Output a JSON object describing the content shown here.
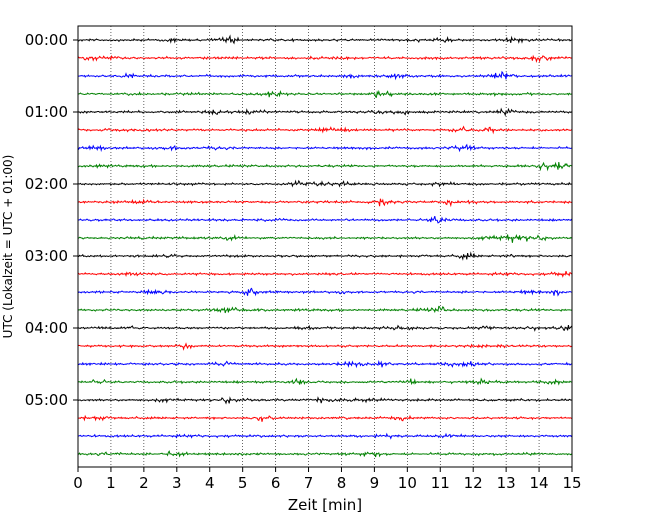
{
  "chart_data": {
    "type": "line",
    "title": "",
    "xlabel": "Zeit  [min]",
    "ylabel": "UTC (Lokalzeit = UTC + 01:00)",
    "xlim": [
      0,
      15
    ],
    "x_ticks": [
      "0",
      "1",
      "2",
      "3",
      "4",
      "5",
      "6",
      "7",
      "8",
      "9",
      "10",
      "11",
      "12",
      "13",
      "14",
      "15"
    ],
    "y_tick_labels": [
      "00:00",
      "01:00",
      "02:00",
      "03:00",
      "04:00",
      "05:00"
    ],
    "traces_per_hour": 4,
    "trace_count": 24,
    "trace_colors": [
      "#000000",
      "#ff0000",
      "#0000ff",
      "#008000"
    ],
    "grid": "vertical dotted at each minute",
    "legend": "none",
    "series_description": "seismogram traces, one per 15 minutes"
  }
}
